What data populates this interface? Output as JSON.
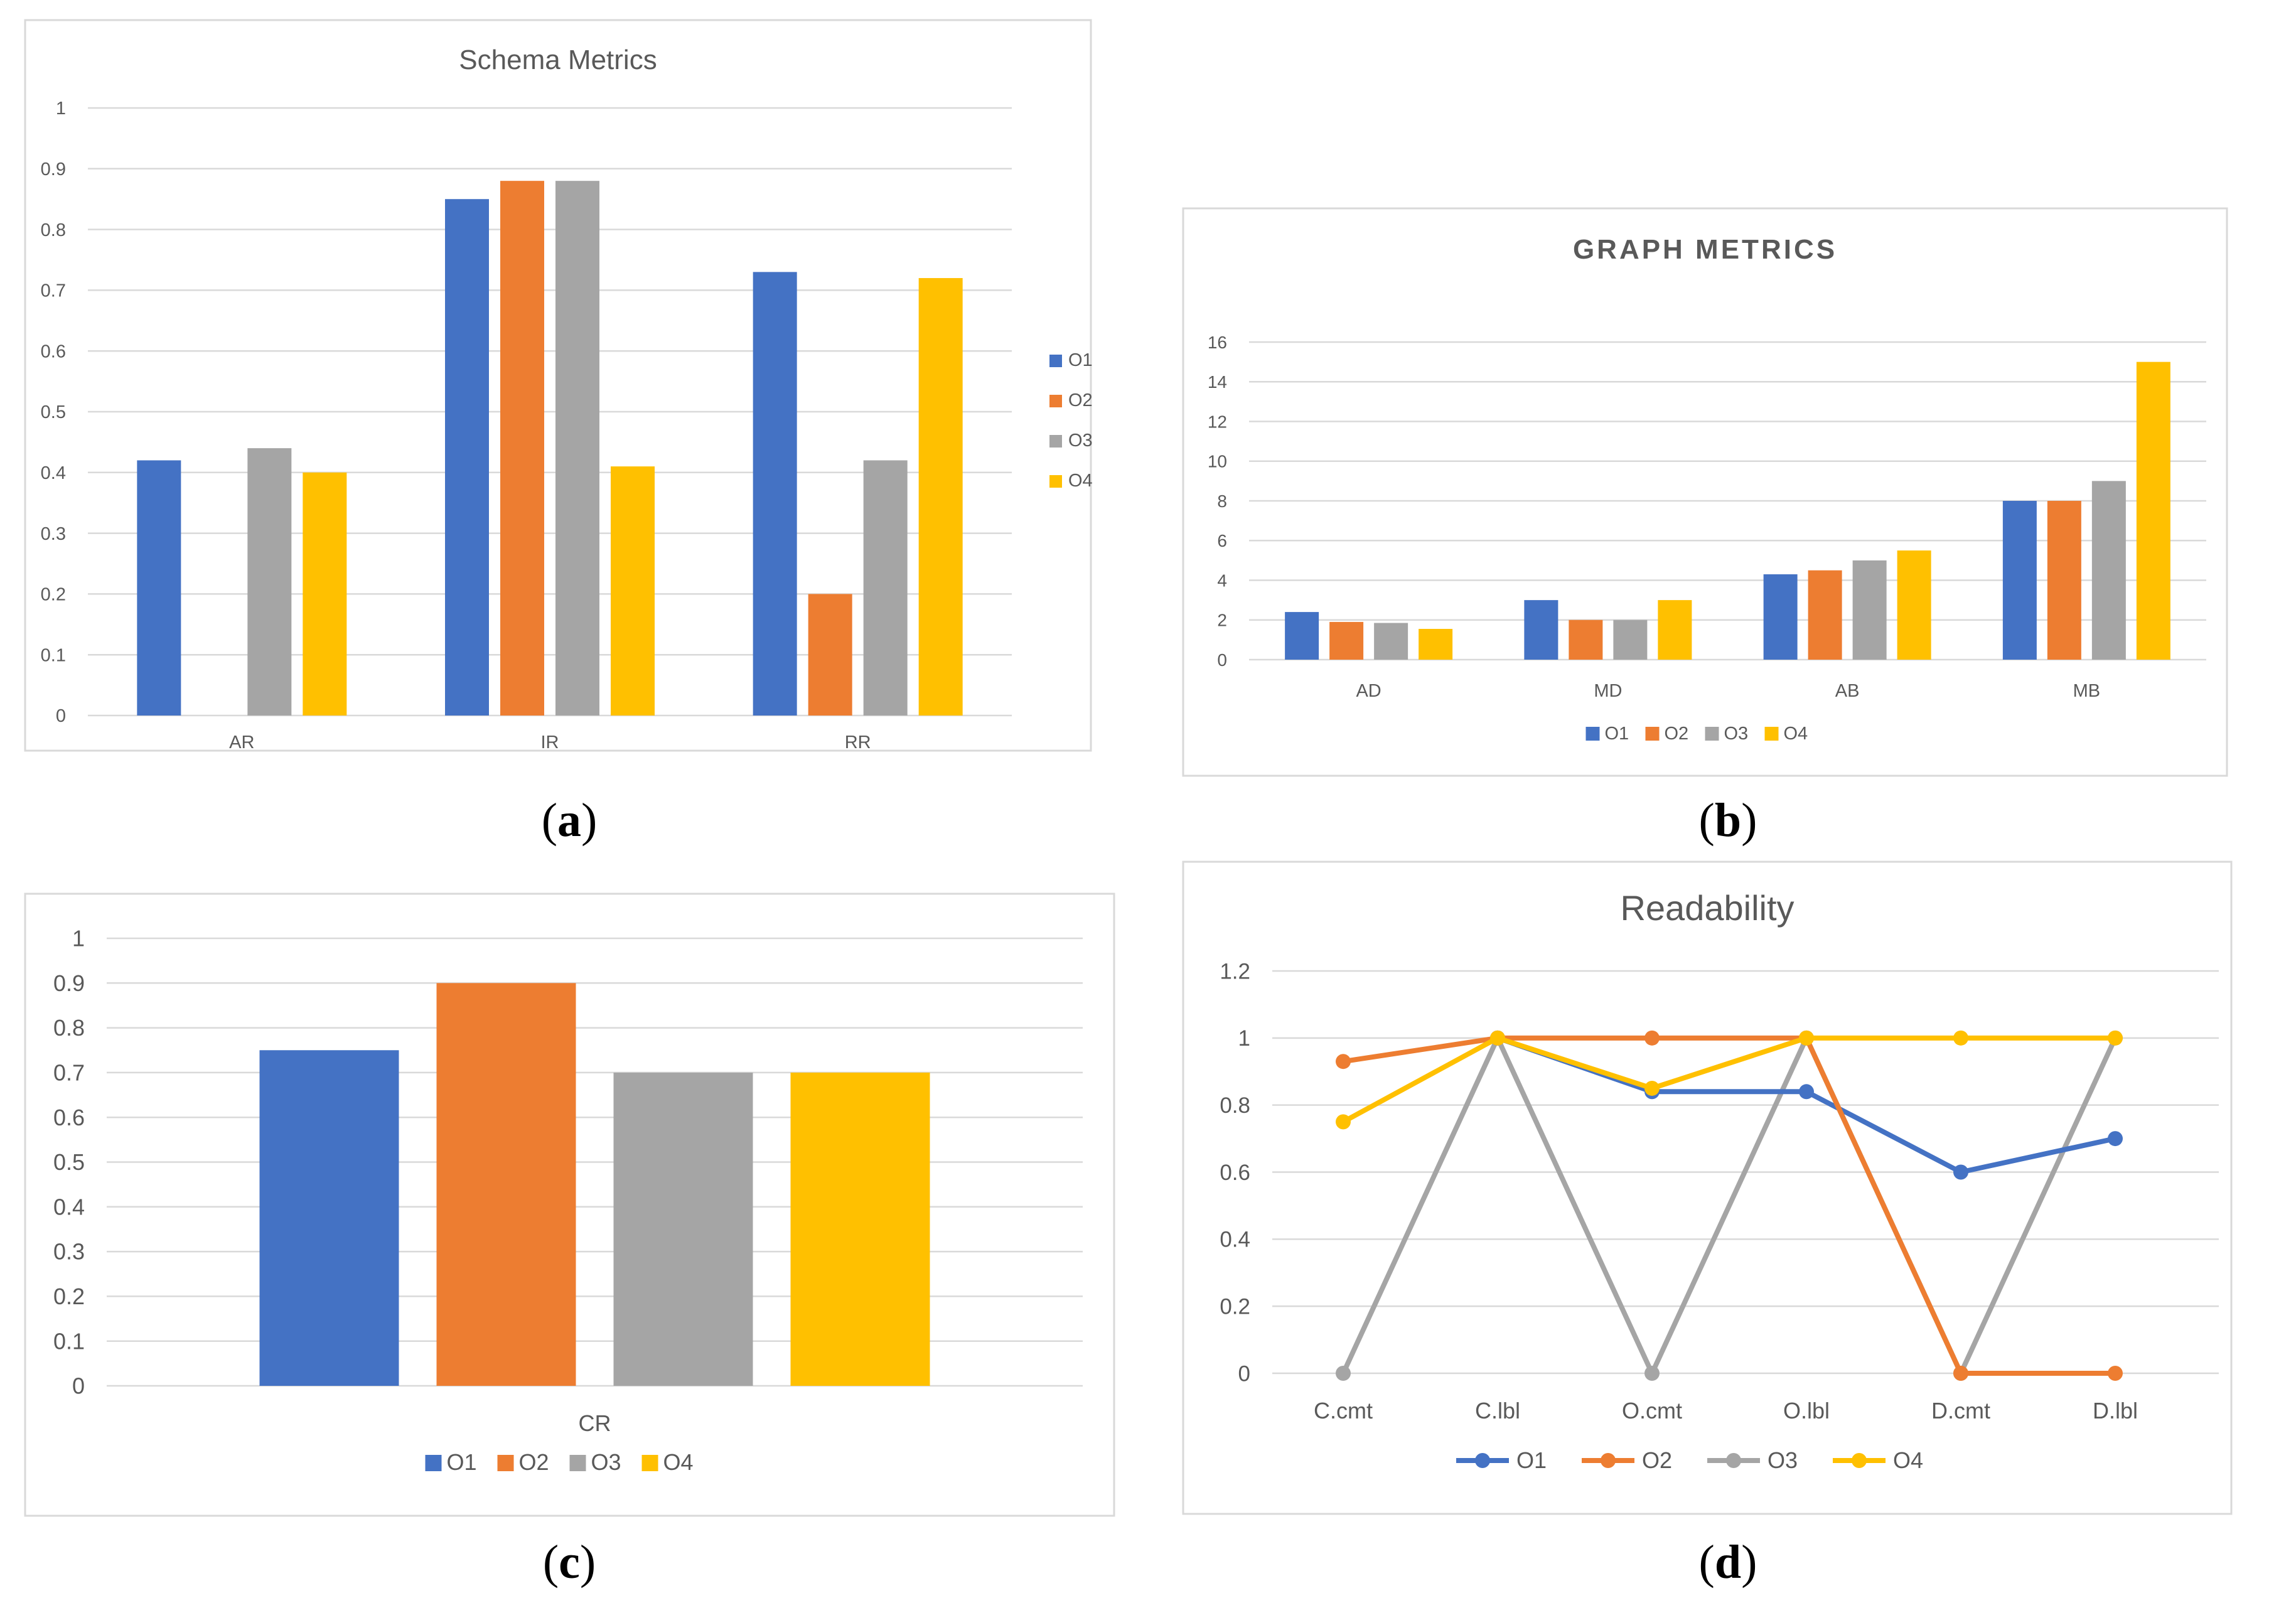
{
  "colors": {
    "O1": "#4472C4",
    "O2": "#ED7D31",
    "O3": "#A5A5A5",
    "O4": "#FFC000",
    "grid": "#D9D9D9",
    "text": "#595959",
    "frame": "#D9D9D9"
  },
  "captions": [
    "a",
    "b",
    "c",
    "d"
  ],
  "chart_data": [
    {
      "id": "a",
      "type": "bar",
      "title": "Schema Metrics",
      "categories": [
        "AR",
        "IR",
        "RR"
      ],
      "series": [
        {
          "name": "O1",
          "values": [
            0.42,
            0.85,
            0.73
          ]
        },
        {
          "name": "O2",
          "values": [
            0,
            0.88,
            0.2
          ]
        },
        {
          "name": "O3",
          "values": [
            0.44,
            0.88,
            0.42
          ]
        },
        {
          "name": "O4",
          "values": [
            0.4,
            0.41,
            0.72
          ]
        }
      ],
      "ylim": [
        0,
        1
      ],
      "yticks": [
        "0",
        "0.1",
        "0.2",
        "0.3",
        "0.4",
        "0.5",
        "0.6",
        "0.7",
        "0.8",
        "0.9",
        "1"
      ],
      "legend": "right"
    },
    {
      "id": "b",
      "type": "bar",
      "title": "GRAPH METRICS",
      "categories": [
        "AD",
        "MD",
        "AB",
        "MB"
      ],
      "series": [
        {
          "name": "O1",
          "values": [
            2.4,
            3,
            4.3,
            8
          ]
        },
        {
          "name": "O2",
          "values": [
            1.9,
            2,
            4.5,
            8
          ]
        },
        {
          "name": "O3",
          "values": [
            1.85,
            2,
            5,
            9
          ]
        },
        {
          "name": "O4",
          "values": [
            1.55,
            3,
            5.5,
            15
          ]
        }
      ],
      "ylim": [
        0,
        16
      ],
      "yticks": [
        "0",
        "2",
        "4",
        "6",
        "8",
        "10",
        "12",
        "14",
        "16"
      ],
      "legend": "bottom"
    },
    {
      "id": "c",
      "type": "bar",
      "title": "",
      "categories": [
        "CR"
      ],
      "series": [
        {
          "name": "O1",
          "values": [
            0.75
          ]
        },
        {
          "name": "O2",
          "values": [
            0.9
          ]
        },
        {
          "name": "O3",
          "values": [
            0.7
          ]
        },
        {
          "name": "O4",
          "values": [
            0.7
          ]
        }
      ],
      "ylim": [
        0,
        1
      ],
      "yticks": [
        "0",
        "0.1",
        "0.2",
        "0.3",
        "0.4",
        "0.5",
        "0.6",
        "0.7",
        "0.8",
        "0.9",
        "1"
      ],
      "legend": "bottom"
    },
    {
      "id": "d",
      "type": "line",
      "title": "Readability",
      "categories": [
        "C.cmt",
        "C.lbl",
        "O.cmt",
        "O.lbl",
        "D.cmt",
        "D.lbl"
      ],
      "series": [
        {
          "name": "O1",
          "values": [
            null,
            1,
            0.84,
            0.84,
            0.6,
            0.7
          ]
        },
        {
          "name": "O2",
          "values": [
            0.93,
            1,
            1,
            1,
            0,
            0
          ]
        },
        {
          "name": "O3",
          "values": [
            0,
            1,
            0,
            1,
            0,
            1
          ]
        },
        {
          "name": "O4",
          "values": [
            0.75,
            1,
            0.85,
            1,
            1,
            1
          ]
        }
      ],
      "ylim": [
        0,
        1.2
      ],
      "yticks": [
        "0",
        "0.2",
        "0.4",
        "0.6",
        "0.8",
        "1",
        "1.2"
      ],
      "legend": "bottom"
    }
  ]
}
